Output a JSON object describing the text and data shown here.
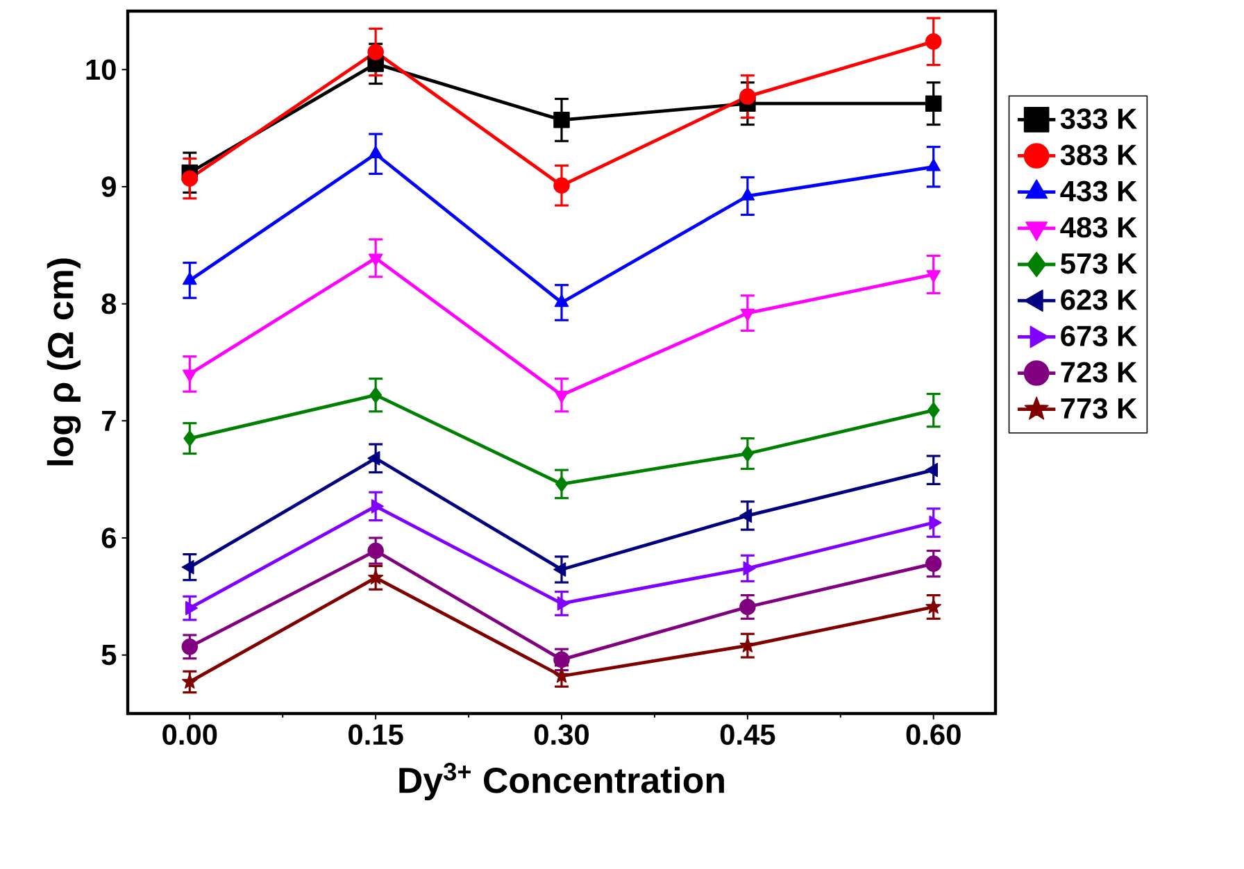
{
  "chart_data": {
    "type": "line",
    "xlabel": "Dy$^{3+}$ Concentration",
    "ylabel": "log ρ (Ω cm)",
    "x": [
      0.0,
      0.15,
      0.3,
      0.45,
      0.6
    ],
    "xlim": [
      -0.05,
      0.65
    ],
    "xticks": [
      {
        "value": 0,
        "label": "0.00"
      },
      {
        "value": 0.15,
        "label": "0.15"
      },
      {
        "value": 0.3,
        "label": "0.30"
      },
      {
        "value": 0.45,
        "label": "0.45"
      },
      {
        "value": 0.6,
        "label": "0.60"
      }
    ],
    "ylim": [
      4.5,
      10.5
    ],
    "yticks": [
      5,
      6,
      7,
      8,
      9,
      10
    ],
    "grid": false,
    "legend": "right",
    "line_style": "solid",
    "series": [
      {
        "name": "333 K",
        "color": "#000000",
        "marker": "square",
        "values": [
          9.12,
          10.05,
          9.57,
          9.71,
          9.71
        ],
        "errors": [
          0.17,
          0.17,
          0.18,
          0.18,
          0.18
        ]
      },
      {
        "name": "383 K",
        "color": "#ff0000",
        "marker": "circle",
        "values": [
          9.07,
          10.15,
          9.01,
          9.77,
          10.24
        ],
        "errors": [
          0.17,
          0.2,
          0.17,
          0.18,
          0.2
        ]
      },
      {
        "name": "433 K",
        "color": "#0000ff",
        "marker": "triangle",
        "values": [
          8.2,
          9.28,
          8.01,
          8.92,
          9.17
        ],
        "errors": [
          0.15,
          0.17,
          0.15,
          0.16,
          0.17
        ]
      },
      {
        "name": "483 K",
        "color": "#ff00ff",
        "marker": "triangle-down",
        "values": [
          7.4,
          8.39,
          7.22,
          7.92,
          8.25
        ],
        "errors": [
          0.15,
          0.16,
          0.14,
          0.15,
          0.16
        ]
      },
      {
        "name": "573 K",
        "color": "#008000",
        "marker": "diamond",
        "values": [
          6.85,
          7.22,
          6.46,
          6.72,
          7.09
        ],
        "errors": [
          0.13,
          0.14,
          0.12,
          0.13,
          0.14
        ]
      },
      {
        "name": "623 K",
        "color": "#000080",
        "marker": "triangle-left",
        "values": [
          5.75,
          6.68,
          5.73,
          6.19,
          6.58
        ],
        "errors": [
          0.11,
          0.12,
          0.11,
          0.12,
          0.12
        ]
      },
      {
        "name": "673 K",
        "color": "#8000ff",
        "marker": "triangle-right",
        "values": [
          5.4,
          6.27,
          5.44,
          5.74,
          6.13
        ],
        "errors": [
          0.1,
          0.12,
          0.1,
          0.11,
          0.12
        ]
      },
      {
        "name": "723 K",
        "color": "#800080",
        "marker": "circle",
        "values": [
          5.07,
          5.89,
          4.96,
          5.41,
          5.78
        ],
        "errors": [
          0.1,
          0.11,
          0.09,
          0.1,
          0.11
        ]
      },
      {
        "name": "773 K",
        "color": "#800000",
        "marker": "star",
        "values": [
          4.77,
          5.66,
          4.82,
          5.08,
          5.41
        ],
        "errors": [
          0.09,
          0.1,
          0.09,
          0.1,
          0.1
        ]
      }
    ]
  }
}
